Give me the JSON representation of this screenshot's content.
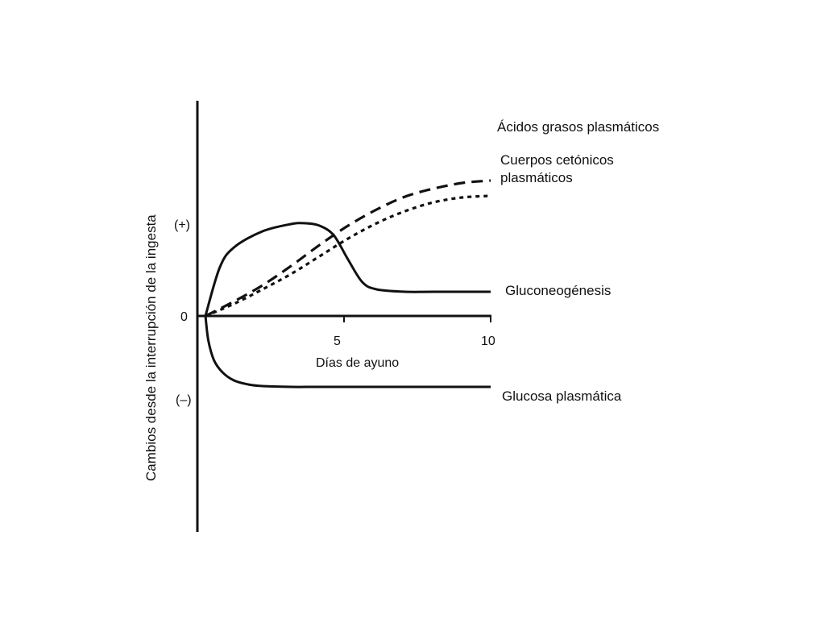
{
  "chart_data": {
    "type": "line",
    "xlabel": "Días de ayuno",
    "ylabel": "Cambios desde la interrupción de la ingesta",
    "x_ticks": [
      "5",
      "10"
    ],
    "y_ticks": [
      "(+)",
      "0",
      "(–)"
    ],
    "xlim": [
      0,
      10
    ],
    "grid": false,
    "legend": "none — series labeled directly at line ends",
    "series": [
      {
        "name": "Ácidos grasos plasmáticos",
        "style": "dashed",
        "x": [
          0,
          1,
          2,
          3,
          4,
          5,
          6,
          7,
          8,
          9,
          10
        ],
        "values": [
          0,
          0.18,
          0.38,
          0.62,
          0.88,
          1.12,
          1.32,
          1.48,
          1.58,
          1.65,
          1.68
        ]
      },
      {
        "name": "Cuerpos cetónicos plasmáticos",
        "style": "dotted",
        "x": [
          0,
          1,
          2,
          3,
          4,
          5,
          6,
          7,
          8,
          9,
          10
        ],
        "values": [
          0,
          0.15,
          0.33,
          0.52,
          0.74,
          0.96,
          1.15,
          1.3,
          1.41,
          1.47,
          1.49
        ]
      },
      {
        "name": "Gluconeogénesis",
        "style": "solid",
        "x": [
          0,
          0.5,
          1,
          2,
          3,
          3.5,
          4,
          4.5,
          5,
          5.5,
          6,
          7,
          8,
          10
        ],
        "values": [
          0,
          0.6,
          0.85,
          1.05,
          1.14,
          1.15,
          1.12,
          1.0,
          0.7,
          0.42,
          0.33,
          0.3,
          0.3,
          0.3
        ]
      },
      {
        "name": "Glucosa plasmática",
        "style": "solid",
        "x": [
          0,
          0.1,
          0.3,
          0.6,
          1,
          1.5,
          2,
          3,
          4,
          6,
          8,
          10
        ],
        "values": [
          0,
          -0.3,
          -0.55,
          -0.7,
          -0.8,
          -0.85,
          -0.87,
          -0.88,
          -0.88,
          -0.88,
          -0.88,
          -0.88
        ]
      }
    ]
  }
}
